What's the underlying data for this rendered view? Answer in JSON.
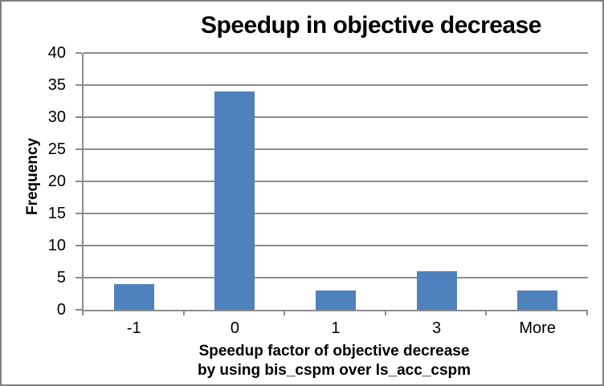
{
  "chart": {
    "title": "Speedup in objective decrease",
    "y_axis_title": "Frequency",
    "x_axis_title_line1": "Speedup factor of objective decrease",
    "x_axis_title_line2": "by using bis_cspm over ls_acc_cspm"
  },
  "chart_data": {
    "type": "bar",
    "title": "Speedup in objective decrease",
    "categories": [
      "-1",
      "0",
      "1",
      "3",
      "More"
    ],
    "values": [
      4,
      34,
      3,
      6,
      3
    ],
    "xlabel": "Speedup factor of objective decrease by using bis_cspm over ls_acc_cspm",
    "ylabel": "Frequency",
    "ylim": [
      0,
      40
    ],
    "ytick_step": 5,
    "grid": "horizontal",
    "legend": "none",
    "colors": {
      "bar_fill": "#4F81BD",
      "gridline": "#8C8C8C",
      "axis_line": "#8C8C8C",
      "chart_border": "#7F7F7F",
      "background": "#FFFFFF",
      "text": "#000000"
    }
  }
}
